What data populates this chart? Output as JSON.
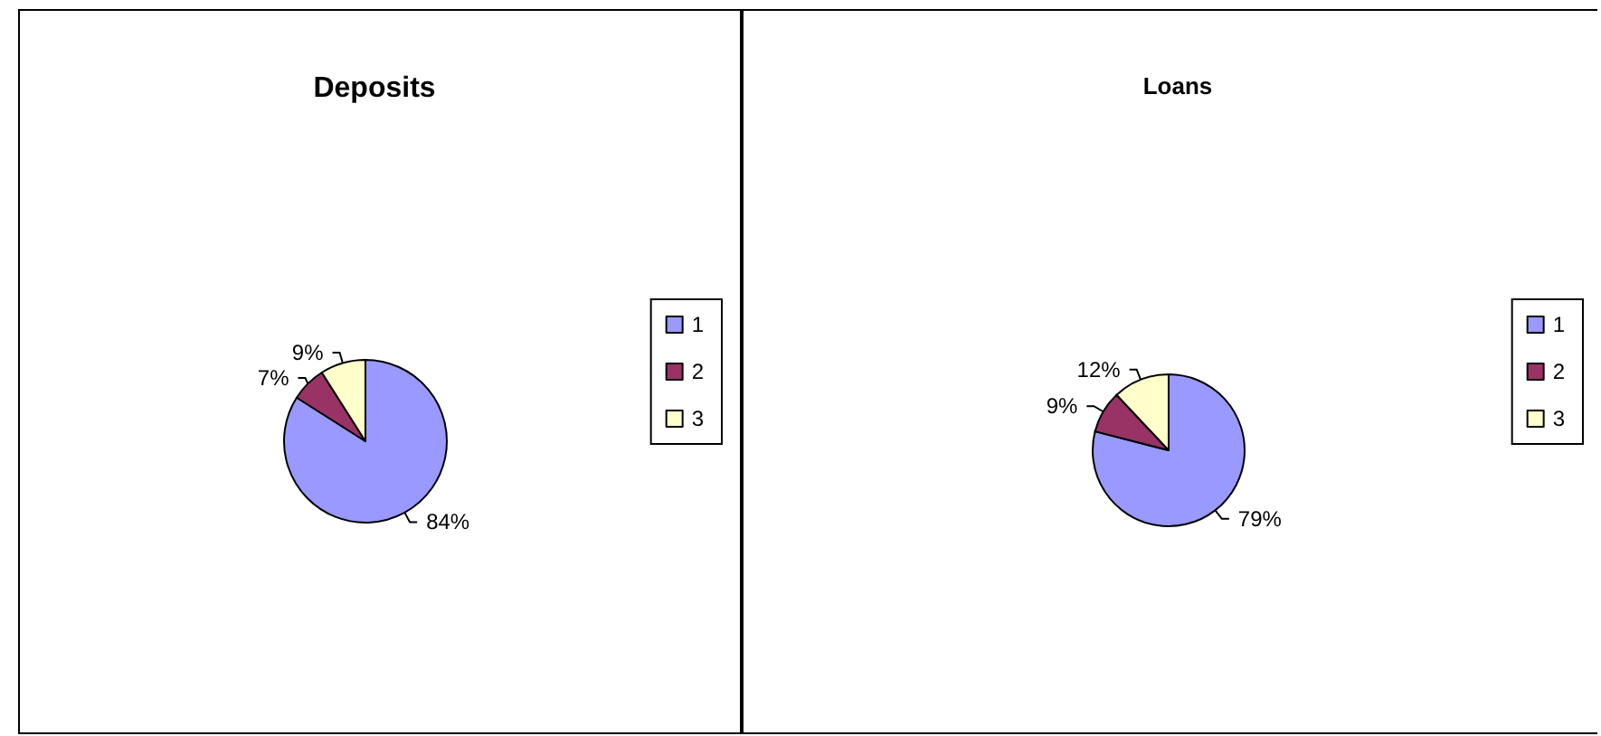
{
  "chart_data": [
    {
      "type": "pie",
      "title": "Deposits",
      "categories": [
        "1",
        "2",
        "3"
      ],
      "values": [
        84,
        7,
        9
      ],
      "colors": [
        "#9999ff",
        "#993366",
        "#ffffcc"
      ],
      "value_labels": [
        "84%",
        "7%",
        "9%"
      ],
      "legend": "right"
    },
    {
      "type": "pie",
      "title": "Loans",
      "categories": [
        "1",
        "2",
        "3"
      ],
      "values": [
        79,
        9,
        12
      ],
      "colors": [
        "#9999ff",
        "#993366",
        "#ffffcc"
      ],
      "value_labels": [
        "79%",
        "9%",
        "12%"
      ],
      "legend": "right"
    }
  ]
}
